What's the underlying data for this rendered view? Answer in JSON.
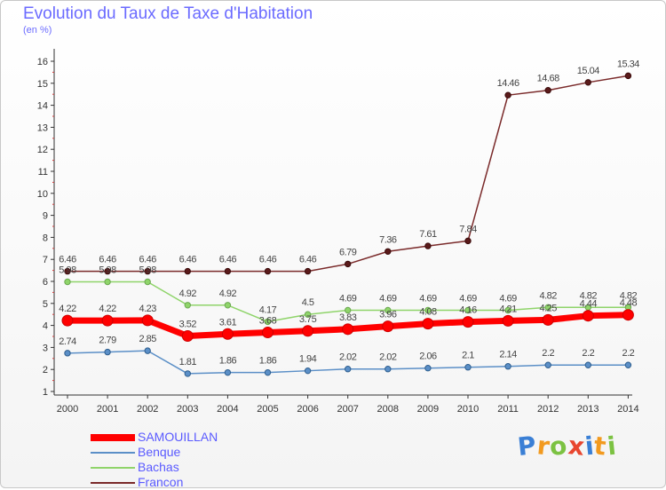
{
  "header": {
    "title": "Evolution du Taux de Taxe d'Habitation",
    "unit": "(en %)"
  },
  "brand": {
    "letters": [
      "P",
      "r",
      "o",
      "x",
      "i",
      "t",
      "i"
    ],
    "colors": [
      "#3a7fd5",
      "#f29a1f",
      "#7cc242",
      "#e8462f",
      "#3a7fd5",
      "#f29a1f",
      "#7cc242"
    ]
  },
  "chart_data": {
    "type": "line",
    "x": [
      "2000",
      "2001",
      "2002",
      "2003",
      "2004",
      "2005",
      "2006",
      "2007",
      "2008",
      "2009",
      "2010",
      "2011",
      "2012",
      "2013",
      "2014"
    ],
    "yticks": [
      "1",
      "2",
      "3",
      "4",
      "5",
      "6",
      "7",
      "8",
      "9",
      "10",
      "11",
      "12",
      "13",
      "14",
      "15",
      "16"
    ],
    "ylim": [
      0.5,
      16
    ],
    "grid": false,
    "legend_position": "bottom-left",
    "series": [
      {
        "name": "Francon",
        "color": "#7a2a2a",
        "values": [
          6.46,
          6.46,
          6.46,
          6.46,
          6.46,
          6.46,
          6.46,
          6.79,
          7.36,
          7.61,
          7.84,
          14.46,
          14.68,
          15.04,
          15.34
        ],
        "labels": [
          "6.46",
          "6.46",
          "6.46",
          "6.46",
          "6.46",
          "6.46",
          "6.46",
          "6.79",
          "7.36",
          "7.61",
          "7.84",
          "14.46",
          "14.68",
          "15.04",
          "15.34"
        ]
      },
      {
        "name": "Bachas",
        "color": "#8fd46a",
        "values": [
          5.98,
          5.98,
          5.98,
          4.92,
          4.92,
          4.17,
          4.5,
          4.69,
          4.69,
          4.69,
          4.69,
          4.69,
          4.82,
          4.82,
          4.82
        ],
        "labels": [
          "5.98",
          "5.98",
          "5.98",
          "4.92",
          "4.92",
          "4.17",
          "4.5",
          "4.69",
          "4.69",
          "4.69",
          "4.69",
          "4.69",
          "4.82",
          "4.82",
          "4.82"
        ]
      },
      {
        "name": "SAMOUILLAN",
        "color": "#ff0000",
        "values": [
          4.22,
          4.22,
          4.23,
          3.52,
          3.61,
          3.68,
          3.75,
          3.83,
          3.96,
          4.08,
          4.16,
          4.21,
          4.25,
          4.44,
          4.48
        ],
        "labels": [
          "4.22",
          "4.22",
          "4.23",
          "3.52",
          "3.61",
          "3.68",
          "3.75",
          "3.83",
          "3.96",
          "4.08",
          "4.16",
          "4.21",
          "4.25",
          "4.44",
          "4.48"
        ]
      },
      {
        "name": "Benque",
        "color": "#5b8fc7",
        "values": [
          2.74,
          2.79,
          2.85,
          1.81,
          1.86,
          1.86,
          1.94,
          2.02,
          2.02,
          2.06,
          2.1,
          2.14,
          2.2,
          2.2,
          2.2
        ],
        "labels": [
          "2.74",
          "2.79",
          "2.85",
          "1.81",
          "1.86",
          "1.86",
          "1.94",
          "2.02",
          "2.02",
          "2.06",
          "2.1",
          "2.14",
          "2.2",
          "2.2",
          "2.2"
        ]
      }
    ],
    "legend_order": [
      "SAMOUILLAN",
      "Benque",
      "Bachas",
      "Francon"
    ]
  }
}
